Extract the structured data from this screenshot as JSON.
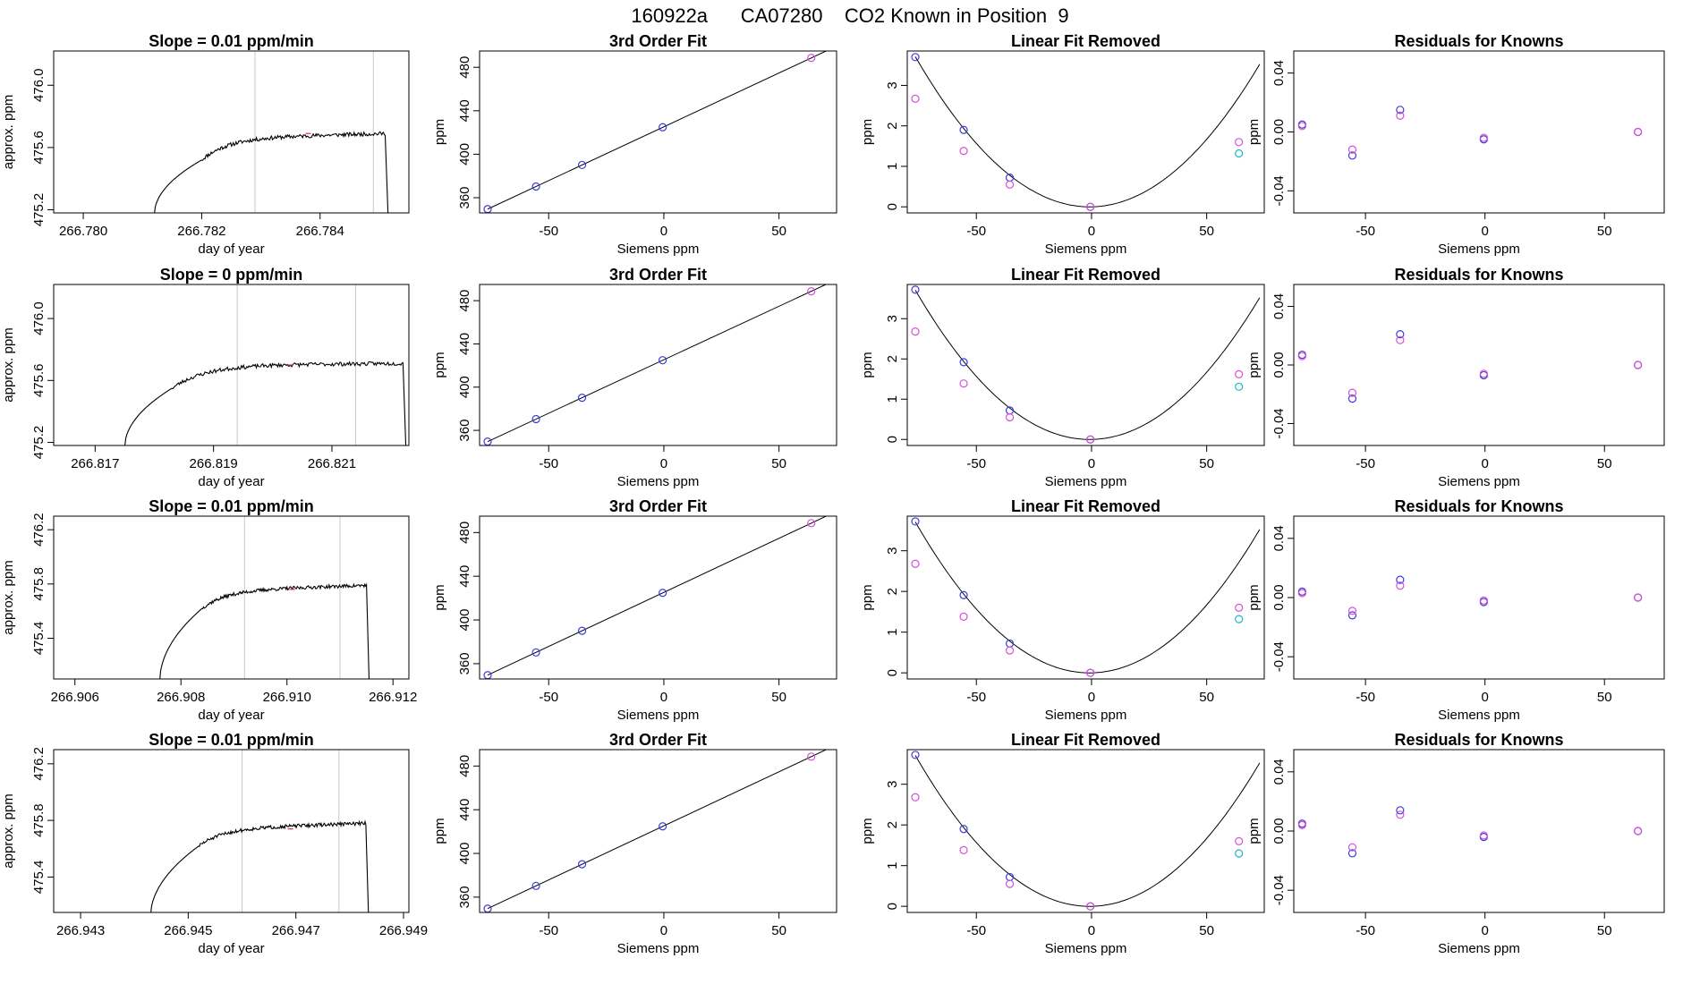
{
  "page_title": "160922a      CA07280    CO2 Known in Position  9",
  "colors": {
    "line": "#000000",
    "vline": "#c8c8c8",
    "blue": "#3b3bdc",
    "magenta": "#d94ddb",
    "cyan": "#19b9c8",
    "red": "#e0303a"
  },
  "chart_data": [
    {
      "type": "line",
      "row": 0,
      "kind": "time",
      "title": "Slope =  0.01  ppm/min",
      "xlabel": "day of year",
      "ylabel": "approx. ppm",
      "xlim": [
        266.7795,
        266.7855
      ],
      "ylim": [
        475.18,
        476.22
      ],
      "xticks": [
        266.78,
        266.782,
        266.784
      ],
      "xtick_labels": [
        "266.780",
        "266.782",
        "266.784"
      ],
      "yticks": [
        475.2,
        475.6,
        476.0
      ],
      "ytick_labels": [
        "475.2",
        "475.6",
        "476.0"
      ],
      "vlines": [
        266.7829,
        266.7849
      ],
      "trace": {
        "x_start": 266.7812,
        "x_rise_end": 266.782,
        "x_end": 266.7851,
        "y_base": 475.17,
        "y_rise": 475.52,
        "y_plateau": 475.66,
        "y_end": 475.69,
        "seed": 11
      },
      "red_mark": [
        266.7838,
        475.69
      ]
    },
    {
      "type": "line",
      "row": 1,
      "kind": "time",
      "title": "Slope =  0  ppm/min",
      "xlabel": "day of year",
      "ylabel": "approx. ppm",
      "xlim": [
        266.8163,
        266.8223
      ],
      "ylim": [
        475.18,
        476.22
      ],
      "xticks": [
        266.817,
        266.819,
        266.821
      ],
      "xtick_labels": [
        "266.817",
        "266.819",
        "266.821"
      ],
      "yticks": [
        475.2,
        475.6,
        476.0
      ],
      "ytick_labels": [
        "475.2",
        "475.6",
        "476.0"
      ],
      "vlines": [
        266.8194,
        266.8214
      ],
      "trace": {
        "x_start": 266.8175,
        "x_rise_end": 266.8183,
        "x_end": 266.8222,
        "y_base": 475.17,
        "y_rise": 475.55,
        "y_plateau": 475.7,
        "y_end": 475.71,
        "seed": 23
      },
      "red_mark": [
        266.8203,
        475.7
      ]
    },
    {
      "type": "line",
      "row": 2,
      "kind": "time",
      "title": "Slope =  0.01  ppm/min",
      "xlabel": "day of year",
      "ylabel": "approx. ppm",
      "xlim": [
        266.9056,
        266.9123
      ],
      "ylim": [
        475.1,
        476.3
      ],
      "xticks": [
        266.906,
        266.908,
        266.91,
        266.912
      ],
      "xtick_labels": [
        "266.906",
        "266.908",
        "266.910",
        "266.912"
      ],
      "yticks": [
        475.4,
        475.8,
        476.2
      ],
      "ytick_labels": [
        "475.4",
        "475.8",
        "476.2"
      ],
      "vlines": [
        266.9092,
        266.911
      ],
      "trace": {
        "x_start": 266.9076,
        "x_rise_end": 266.9084,
        "x_end": 266.9115,
        "y_base": 475.08,
        "y_rise": 475.62,
        "y_plateau": 475.75,
        "y_end": 475.79,
        "seed": 37
      },
      "red_mark": [
        266.9101,
        475.76
      ]
    },
    {
      "type": "line",
      "row": 3,
      "kind": "time",
      "title": "Slope =  0.01  ppm/min",
      "xlabel": "day of year",
      "ylabel": "approx. ppm",
      "xlim": [
        266.9425,
        266.9491
      ],
      "ylim": [
        475.15,
        476.3
      ],
      "xticks": [
        266.943,
        266.945,
        266.947,
        266.949
      ],
      "xtick_labels": [
        "266.943",
        "266.945",
        "266.947",
        "266.949"
      ],
      "yticks": [
        475.4,
        475.8,
        476.2
      ],
      "ytick_labels": [
        "475.4",
        "475.8",
        "476.2"
      ],
      "vlines": [
        266.946,
        266.9478
      ],
      "trace": {
        "x_start": 266.9443,
        "x_rise_end": 266.9452,
        "x_end": 266.9483,
        "y_base": 475.12,
        "y_rise": 475.62,
        "y_plateau": 475.74,
        "y_end": 475.78,
        "seed": 51
      },
      "red_mark": [
        266.9469,
        475.74
      ]
    },
    {
      "type": "scatter",
      "row": 0,
      "kind": "fit3",
      "title": "3rd Order Fit",
      "xlabel": "Siemens ppm",
      "ylabel": "ppm",
      "xlim": [
        -80,
        75
      ],
      "ylim": [
        346,
        495
      ],
      "xticks": [
        -50,
        0,
        50
      ],
      "xtick_labels": [
        "-50",
        "0",
        "50"
      ],
      "yticks": [
        360,
        400,
        440,
        480
      ],
      "ytick_labels": [
        "360",
        "400",
        "440",
        "480"
      ],
      "points": [
        [
          -76.5,
          349.5
        ],
        [
          -55.5,
          370.3
        ],
        [
          -35.5,
          390.1
        ],
        [
          -0.5,
          424.8
        ],
        [
          64,
          488.6
        ]
      ],
      "point_colors": [
        "blue",
        "blue",
        "blue",
        "blue",
        "magenta"
      ],
      "line": [
        [
          -76.5,
          349.5
        ],
        [
          73,
          497.5
        ]
      ]
    },
    {
      "type": "scatter",
      "row": 1,
      "kind": "fit3",
      "title": "3rd Order Fit",
      "xlabel": "Siemens ppm",
      "ylabel": "ppm",
      "xlim": [
        -80,
        75
      ],
      "ylim": [
        346,
        495
      ],
      "xticks": [
        -50,
        0,
        50
      ],
      "xtick_labels": [
        "-50",
        "0",
        "50"
      ],
      "yticks": [
        360,
        400,
        440,
        480
      ],
      "ytick_labels": [
        "360",
        "400",
        "440",
        "480"
      ],
      "points": [
        [
          -76.5,
          349.6
        ],
        [
          -55.5,
          370.4
        ],
        [
          -35.5,
          390.2
        ],
        [
          -0.5,
          424.9
        ],
        [
          64,
          488.7
        ]
      ],
      "point_colors": [
        "blue",
        "blue",
        "blue",
        "blue",
        "magenta"
      ],
      "line": [
        [
          -76.5,
          349.6
        ],
        [
          73,
          497.6
        ]
      ]
    },
    {
      "type": "scatter",
      "row": 2,
      "kind": "fit3",
      "title": "3rd Order Fit",
      "xlabel": "Siemens ppm",
      "ylabel": "ppm",
      "xlim": [
        -80,
        75
      ],
      "ylim": [
        346,
        495
      ],
      "xticks": [
        -50,
        0,
        50
      ],
      "xtick_labels": [
        "-50",
        "0",
        "50"
      ],
      "yticks": [
        360,
        400,
        440,
        480
      ],
      "ytick_labels": [
        "360",
        "400",
        "440",
        "480"
      ],
      "points": [
        [
          -76.5,
          349.5
        ],
        [
          -55.5,
          370.3
        ],
        [
          -35.5,
          390.1
        ],
        [
          -0.5,
          424.8
        ],
        [
          64,
          488.6
        ]
      ],
      "point_colors": [
        "blue",
        "blue",
        "blue",
        "blue",
        "magenta"
      ],
      "line": [
        [
          -76.5,
          349.5
        ],
        [
          73,
          497.5
        ]
      ]
    },
    {
      "type": "scatter",
      "row": 3,
      "kind": "fit3",
      "title": "3rd Order Fit",
      "xlabel": "Siemens ppm",
      "ylabel": "ppm",
      "xlim": [
        -80,
        75
      ],
      "ylim": [
        346,
        495
      ],
      "xticks": [
        -50,
        0,
        50
      ],
      "xtick_labels": [
        "-50",
        "0",
        "50"
      ],
      "yticks": [
        360,
        400,
        440,
        480
      ],
      "ytick_labels": [
        "360",
        "400",
        "440",
        "480"
      ],
      "points": [
        [
          -76.5,
          349.5
        ],
        [
          -55.5,
          370.3
        ],
        [
          -35.5,
          390.1
        ],
        [
          -0.5,
          424.8
        ],
        [
          64,
          488.6
        ]
      ],
      "point_colors": [
        "blue",
        "blue",
        "blue",
        "blue",
        "magenta"
      ],
      "line": [
        [
          -76.5,
          349.5
        ],
        [
          73,
          497.5
        ]
      ]
    },
    {
      "type": "scatter",
      "row": 0,
      "kind": "linrem",
      "title": "Linear Fit Removed",
      "xlabel": "Siemens ppm",
      "ylabel": "ppm",
      "xlim": [
        -80,
        75
      ],
      "ylim": [
        -0.15,
        3.85
      ],
      "xticks": [
        -50,
        0,
        50
      ],
      "xtick_labels": [
        "-50",
        "0",
        "50"
      ],
      "yticks": [
        0,
        1,
        2,
        3
      ],
      "ytick_labels": [
        "0",
        "1",
        "2",
        "3"
      ],
      "points": [
        [
          -76.5,
          3.7
        ],
        [
          -55.5,
          1.9
        ],
        [
          -35.5,
          0.72
        ],
        [
          -0.5,
          0.0
        ],
        [
          -76.5,
          2.67
        ],
        [
          -55.5,
          1.38
        ],
        [
          -35.5,
          0.55
        ],
        [
          -0.5,
          0.0
        ],
        [
          64,
          1.6
        ],
        [
          64,
          1.32
        ]
      ],
      "point_colors": [
        "blue",
        "blue",
        "blue",
        "blue",
        "magenta",
        "magenta",
        "magenta",
        "magenta",
        "magenta",
        "cyan"
      ],
      "curve": {
        "a": 0.000647,
        "b": 0.00103,
        "c": 0.0,
        "x_from": -76.5,
        "x_to": 73
      }
    },
    {
      "type": "scatter",
      "row": 1,
      "kind": "linrem",
      "title": "Linear Fit Removed",
      "xlabel": "Siemens ppm",
      "ylabel": "ppm",
      "xlim": [
        -80,
        75
      ],
      "ylim": [
        -0.15,
        3.85
      ],
      "xticks": [
        -50,
        0,
        50
      ],
      "xtick_labels": [
        "-50",
        "0",
        "50"
      ],
      "yticks": [
        0,
        1,
        2,
        3
      ],
      "ytick_labels": [
        "0",
        "1",
        "2",
        "3"
      ],
      "points": [
        [
          -76.5,
          3.72
        ],
        [
          -55.5,
          1.92
        ],
        [
          -35.5,
          0.72
        ],
        [
          -0.5,
          0.0
        ],
        [
          -76.5,
          2.68
        ],
        [
          -55.5,
          1.39
        ],
        [
          -35.5,
          0.55
        ],
        [
          -0.5,
          0.0
        ],
        [
          64,
          1.62
        ],
        [
          64,
          1.31
        ]
      ],
      "point_colors": [
        "blue",
        "blue",
        "blue",
        "blue",
        "magenta",
        "magenta",
        "magenta",
        "magenta",
        "magenta",
        "cyan"
      ],
      "curve": {
        "a": 0.000647,
        "b": 0.00103,
        "c": 0.0,
        "x_from": -76.5,
        "x_to": 73
      }
    },
    {
      "type": "scatter",
      "row": 2,
      "kind": "linrem",
      "title": "Linear Fit Removed",
      "xlabel": "Siemens ppm",
      "ylabel": "ppm",
      "xlim": [
        -80,
        75
      ],
      "ylim": [
        -0.15,
        3.85
      ],
      "xticks": [
        -50,
        0,
        50
      ],
      "xtick_labels": [
        "-50",
        "0",
        "50"
      ],
      "yticks": [
        0,
        1,
        2,
        3
      ],
      "ytick_labels": [
        "0",
        "1",
        "2",
        "3"
      ],
      "points": [
        [
          -76.5,
          3.72
        ],
        [
          -55.5,
          1.91
        ],
        [
          -35.5,
          0.72
        ],
        [
          -0.5,
          0.0
        ],
        [
          -76.5,
          2.68
        ],
        [
          -55.5,
          1.38
        ],
        [
          -35.5,
          0.55
        ],
        [
          -0.5,
          0.0
        ],
        [
          64,
          1.6
        ],
        [
          64,
          1.32
        ]
      ],
      "point_colors": [
        "blue",
        "blue",
        "blue",
        "blue",
        "magenta",
        "magenta",
        "magenta",
        "magenta",
        "magenta",
        "cyan"
      ],
      "curve": {
        "a": 0.000647,
        "b": 0.00103,
        "c": 0.0,
        "x_from": -76.5,
        "x_to": 73
      }
    },
    {
      "type": "scatter",
      "row": 3,
      "kind": "linrem",
      "title": "Linear Fit Removed",
      "xlabel": "Siemens ppm",
      "ylabel": "ppm",
      "xlim": [
        -80,
        75
      ],
      "ylim": [
        -0.15,
        3.85
      ],
      "xticks": [
        -50,
        0,
        50
      ],
      "xtick_labels": [
        "-50",
        "0",
        "50"
      ],
      "yticks": [
        0,
        1,
        2,
        3
      ],
      "ytick_labels": [
        "0",
        "1",
        "2",
        "3"
      ],
      "points": [
        [
          -76.5,
          3.72
        ],
        [
          -55.5,
          1.9
        ],
        [
          -35.5,
          0.72
        ],
        [
          -0.5,
          0.0
        ],
        [
          -76.5,
          2.68
        ],
        [
          -55.5,
          1.38
        ],
        [
          -35.5,
          0.55
        ],
        [
          -0.5,
          0.0
        ],
        [
          64,
          1.6
        ],
        [
          64,
          1.3
        ]
      ],
      "point_colors": [
        "blue",
        "blue",
        "blue",
        "blue",
        "magenta",
        "magenta",
        "magenta",
        "magenta",
        "magenta",
        "cyan"
      ],
      "curve": {
        "a": 0.000647,
        "b": 0.00103,
        "c": 0.0,
        "x_from": -76.5,
        "x_to": 73
      }
    },
    {
      "type": "scatter",
      "row": 0,
      "kind": "resid",
      "title": "Residuals for Knowns",
      "xlabel": "Siemens ppm",
      "ylabel": "ppm",
      "xlim": [
        -80,
        75
      ],
      "ylim": [
        -0.055,
        0.055
      ],
      "xticks": [
        -50,
        0,
        50
      ],
      "xtick_labels": [
        "-50",
        "0",
        "50"
      ],
      "yticks": [
        -0.04,
        0.0,
        0.04
      ],
      "ytick_labels": [
        "-0.04",
        "0.00",
        "0.04"
      ],
      "points": [
        [
          -76.5,
          0.005
        ],
        [
          -55.5,
          -0.016
        ],
        [
          -35.5,
          0.015
        ],
        [
          -0.5,
          -0.005
        ],
        [
          64,
          0.0
        ],
        [
          -76.5,
          0.004
        ],
        [
          -55.5,
          -0.012
        ],
        [
          -35.5,
          0.011
        ],
        [
          -0.5,
          -0.004
        ],
        [
          64,
          0.0
        ]
      ],
      "point_colors": [
        "blue",
        "blue",
        "blue",
        "blue",
        "blue",
        "magenta",
        "magenta",
        "magenta",
        "magenta",
        "magenta"
      ]
    },
    {
      "type": "scatter",
      "row": 1,
      "kind": "resid",
      "title": "Residuals for Knowns",
      "xlabel": "Siemens ppm",
      "ylabel": "ppm",
      "xlim": [
        -80,
        75
      ],
      "ylim": [
        -0.055,
        0.055
      ],
      "xticks": [
        -50,
        0,
        50
      ],
      "xtick_labels": [
        "-50",
        "0",
        "50"
      ],
      "yticks": [
        -0.04,
        0.0,
        0.04
      ],
      "ytick_labels": [
        "-0.04",
        "0.00",
        "0.04"
      ],
      "points": [
        [
          -76.5,
          0.007
        ],
        [
          -55.5,
          -0.023
        ],
        [
          -35.5,
          0.021
        ],
        [
          -0.5,
          -0.007
        ],
        [
          64,
          0.0
        ],
        [
          -76.5,
          0.006
        ],
        [
          -55.5,
          -0.019
        ],
        [
          -35.5,
          0.017
        ],
        [
          -0.5,
          -0.006
        ],
        [
          64,
          0.0
        ]
      ],
      "point_colors": [
        "blue",
        "blue",
        "blue",
        "blue",
        "blue",
        "magenta",
        "magenta",
        "magenta",
        "magenta",
        "magenta"
      ]
    },
    {
      "type": "scatter",
      "row": 2,
      "kind": "resid",
      "title": "Residuals for Knowns",
      "xlabel": "Siemens ppm",
      "ylabel": "ppm",
      "xlim": [
        -80,
        75
      ],
      "ylim": [
        -0.055,
        0.055
      ],
      "xticks": [
        -50,
        0,
        50
      ],
      "xtick_labels": [
        "-50",
        "0",
        "50"
      ],
      "yticks": [
        -0.04,
        0.0,
        0.04
      ],
      "ytick_labels": [
        "-0.04",
        "0.00",
        "0.04"
      ],
      "points": [
        [
          -76.5,
          0.004
        ],
        [
          -55.5,
          -0.012
        ],
        [
          -35.5,
          0.012
        ],
        [
          -0.5,
          -0.003
        ],
        [
          64,
          0.0
        ],
        [
          -76.5,
          0.003
        ],
        [
          -55.5,
          -0.009
        ],
        [
          -35.5,
          0.008
        ],
        [
          -0.5,
          -0.002
        ],
        [
          64,
          0.0
        ]
      ],
      "point_colors": [
        "blue",
        "blue",
        "blue",
        "blue",
        "blue",
        "magenta",
        "magenta",
        "magenta",
        "magenta",
        "magenta"
      ]
    },
    {
      "type": "scatter",
      "row": 3,
      "kind": "resid",
      "title": "Residuals for Knowns",
      "xlabel": "Siemens ppm",
      "ylabel": "ppm",
      "xlim": [
        -80,
        75
      ],
      "ylim": [
        -0.055,
        0.055
      ],
      "xticks": [
        -50,
        0,
        50
      ],
      "xtick_labels": [
        "-50",
        "0",
        "50"
      ],
      "yticks": [
        -0.04,
        0.0,
        0.04
      ],
      "ytick_labels": [
        "-0.04",
        "0.00",
        "0.04"
      ],
      "points": [
        [
          -76.5,
          0.005
        ],
        [
          -55.5,
          -0.015
        ],
        [
          -35.5,
          0.014
        ],
        [
          -0.5,
          -0.004
        ],
        [
          64,
          0.0
        ],
        [
          -76.5,
          0.004
        ],
        [
          -55.5,
          -0.011
        ],
        [
          -35.5,
          0.011
        ],
        [
          -0.5,
          -0.003
        ],
        [
          64,
          0.0
        ]
      ],
      "point_colors": [
        "blue",
        "blue",
        "blue",
        "blue",
        "blue",
        "magenta",
        "magenta",
        "magenta",
        "magenta",
        "magenta"
      ]
    }
  ]
}
